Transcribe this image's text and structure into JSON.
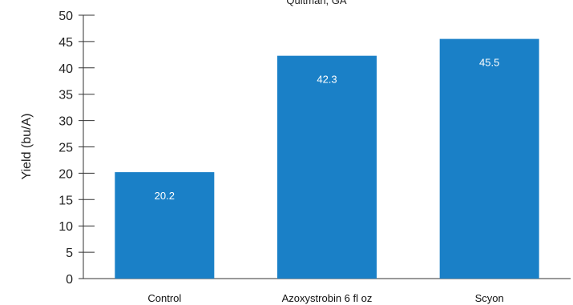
{
  "chart_data": {
    "type": "bar",
    "title": "Quitman, GA",
    "xlabel": "",
    "ylabel": "Yield (bu/A)",
    "categories": [
      "Control",
      "Azoxystrobin 6 fl oz",
      "Scyon"
    ],
    "values": [
      20.2,
      42.3,
      45.5
    ],
    "data_labels": [
      "20.2",
      "42.3",
      "45.5"
    ],
    "ylim": [
      0,
      50
    ],
    "yticks": [
      0,
      5,
      10,
      15,
      20,
      25,
      30,
      35,
      40,
      45,
      50
    ],
    "grid": false,
    "legend": "none",
    "bar_color": "#1a80c7"
  }
}
